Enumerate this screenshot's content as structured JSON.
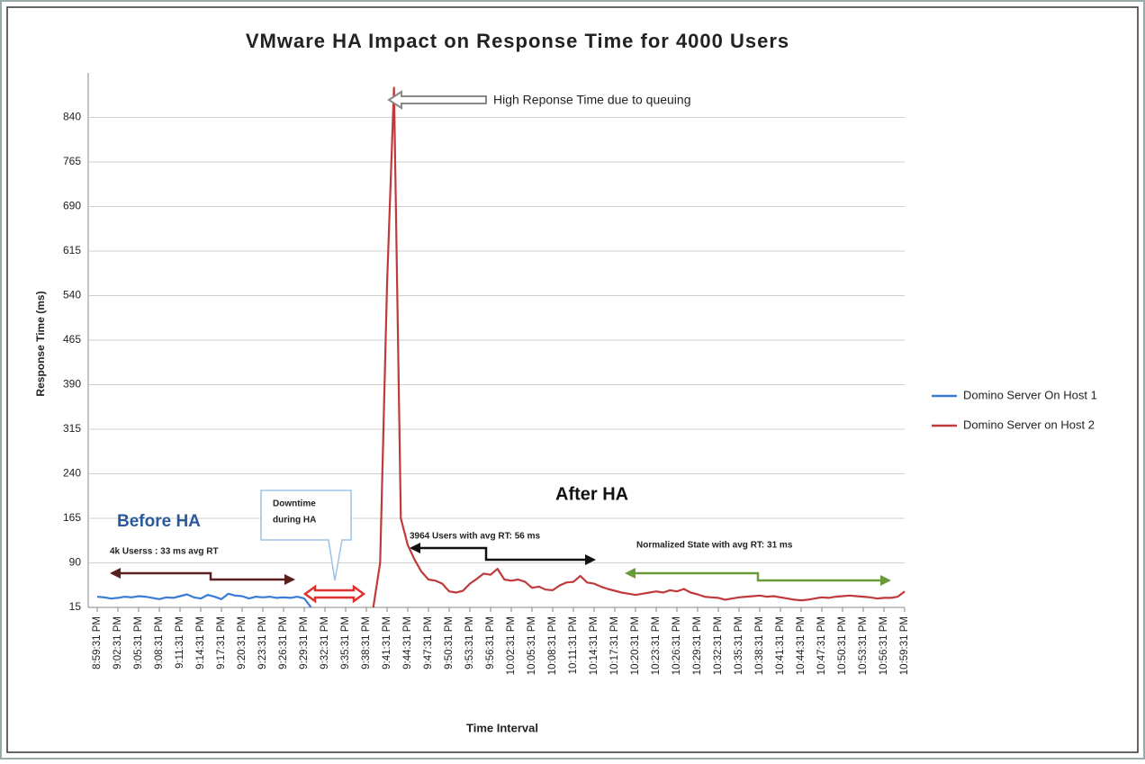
{
  "chart_data": {
    "type": "line",
    "title": "VMware HA Impact on Response Time for 4000 Users",
    "y_label": "Response Time (ms)",
    "x_label": "Time Interval",
    "ylim": [
      15,
      915
    ],
    "yticks": [
      15,
      90,
      165,
      240,
      315,
      390,
      465,
      540,
      615,
      690,
      765,
      840
    ],
    "grid": true,
    "legend": "right",
    "categories": [
      "8:59:31 PM",
      null,
      null,
      "9:02:31 PM",
      null,
      null,
      "9:05:31 PM",
      null,
      null,
      "9:08:31 PM",
      null,
      null,
      "9:11:31 PM",
      null,
      null,
      "9:14:31 PM",
      null,
      null,
      "9:17:31 PM",
      null,
      null,
      "9:20:31 PM",
      null,
      null,
      "9:23:31 PM",
      null,
      null,
      "9:26:31 PM",
      null,
      null,
      "9:29:31 PM",
      null,
      null,
      "9:32:31 PM",
      null,
      null,
      "9:35:31 PM",
      null,
      null,
      "9:38:31 PM",
      null,
      null,
      "9:41:31 PM",
      null,
      null,
      "9:44:31 PM",
      null,
      null,
      "9:47:31 PM",
      null,
      null,
      "9:50:31 PM",
      null,
      null,
      "9:53:31 PM",
      null,
      null,
      "9:56:31 PM",
      null,
      null,
      "10:02:31 PM",
      null,
      null,
      "10:05:31 PM",
      null,
      null,
      "10:08:31 PM",
      null,
      null,
      "10:11:31 PM",
      null,
      null,
      "10:14:31 PM",
      null,
      null,
      "10:17:31 PM",
      null,
      null,
      "10:20:31 PM",
      null,
      null,
      "10:23:31 PM",
      null,
      null,
      "10:26:31 PM",
      null,
      null,
      "10:29:31 PM",
      null,
      null,
      "10:32:31 PM",
      null,
      null,
      "10:35:31 PM",
      null,
      null,
      "10:38:31 PM",
      null,
      null,
      "10:41:31 PM",
      null,
      null,
      "10:44:31 PM",
      null,
      null,
      "10:47:31 PM",
      null,
      null,
      "10:50:31 PM",
      null,
      null,
      "10:53:31 PM",
      null,
      null,
      "10:56:31 PM",
      null,
      null,
      "10:59:31 PM"
    ],
    "series": [
      {
        "name": "Domino Server On Host 1",
        "color": "#3a7bd5",
        "values": [
          33,
          32,
          30,
          31,
          33,
          32,
          34,
          33,
          31,
          29,
          32,
          31,
          34,
          37,
          32,
          30,
          36,
          33,
          29,
          38,
          35,
          34,
          30,
          33,
          32,
          33,
          31,
          32,
          31,
          33,
          30,
          15,
          null,
          null,
          null,
          null,
          null,
          null,
          null,
          null,
          null,
          null,
          null,
          null,
          null,
          null,
          null,
          null,
          null,
          null,
          null,
          null,
          null,
          null,
          null,
          null,
          null,
          null,
          null,
          null,
          null,
          null,
          null,
          null,
          null,
          null,
          null,
          null,
          null,
          null,
          null,
          null,
          null,
          null,
          null,
          null,
          null,
          null,
          null,
          null,
          null,
          null,
          null,
          null,
          null,
          null,
          null,
          null,
          null,
          null,
          null,
          null,
          null,
          null,
          null,
          null,
          null,
          null,
          null,
          null,
          null,
          null,
          null,
          null,
          null,
          null,
          null,
          null,
          null,
          null,
          null,
          null,
          null,
          null,
          null,
          null,
          null,
          null
        ]
      },
      {
        "name": "Domino Server on Host 2",
        "color": "#c0393b",
        "values": [
          null,
          null,
          null,
          null,
          null,
          null,
          null,
          null,
          null,
          null,
          null,
          null,
          null,
          null,
          null,
          null,
          null,
          null,
          null,
          null,
          null,
          null,
          null,
          null,
          null,
          null,
          null,
          null,
          null,
          null,
          null,
          null,
          null,
          null,
          null,
          null,
          null,
          null,
          null,
          null,
          15,
          90,
          560,
          890,
          165,
          120,
          95,
          75,
          62,
          60,
          55,
          42,
          40,
          43,
          55,
          63,
          72,
          70,
          80,
          62,
          60,
          62,
          58,
          48,
          50,
          45,
          44,
          52,
          57,
          58,
          68,
          57,
          55,
          50,
          46,
          43,
          40,
          38,
          36,
          38,
          40,
          42,
          40,
          44,
          42,
          46,
          40,
          37,
          33,
          32,
          31,
          28,
          30,
          32,
          33,
          34,
          35,
          33,
          34,
          32,
          30,
          28,
          27,
          28,
          30,
          32,
          31,
          33,
          34,
          35,
          34,
          33,
          32,
          30,
          31,
          31,
          33,
          42
        ]
      }
    ],
    "annotations": [
      "High Reponse Time due to queuing",
      "Before HA",
      "After HA",
      "Downtime",
      "during HA",
      "4k Userss : 33 ms avg RT",
      "3964 Users with avg RT: 56 ms",
      "Normalized State with avg RT: 31 ms"
    ]
  }
}
